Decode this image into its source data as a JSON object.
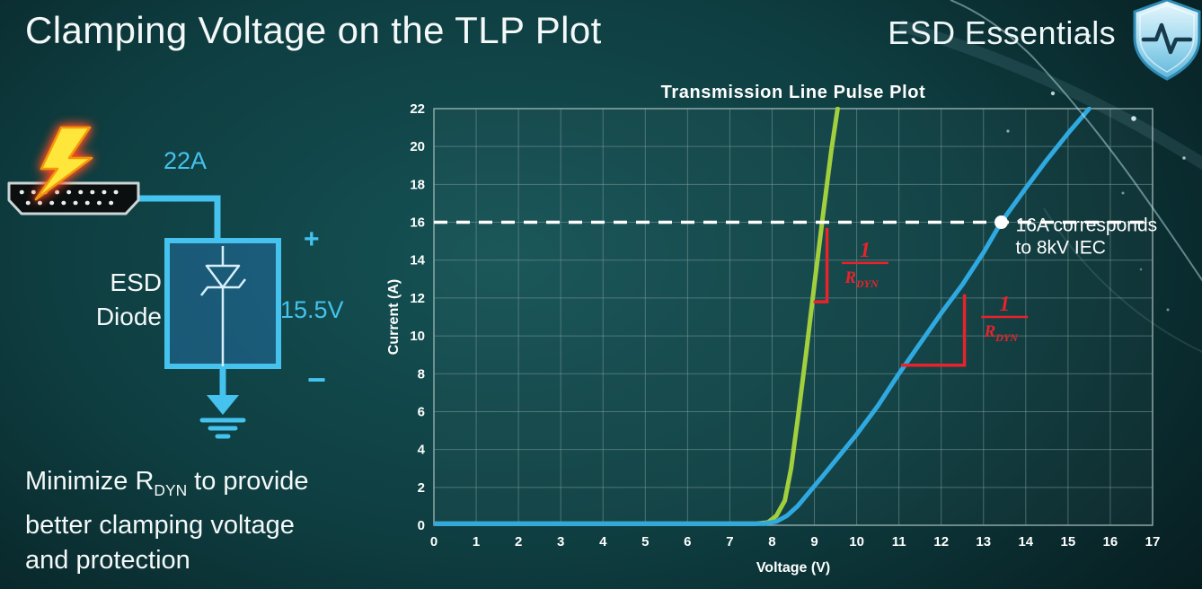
{
  "header": {
    "title": "Clamping Voltage on the TLP Plot",
    "brand": "ESD Essentials"
  },
  "icons": {
    "brand": "shield-pulse-icon",
    "strike": "lightning-bolt-icon",
    "connector": "hdmi-connector-icon",
    "ground": "ground-icon"
  },
  "colors": {
    "accent_cyan": "#45c2ed",
    "series_green": "#a2cf3e",
    "series_blue": "#2fa9e0",
    "annotation_red": "#e8232a",
    "background_teal": "#0d3b3e",
    "text": "#f2f6f6"
  },
  "diagram": {
    "surge_current": "22A",
    "plus": "+",
    "clamp_voltage": "15.5V",
    "minus": "−",
    "component_line1": "ESD",
    "component_line2": "Diode"
  },
  "caption": {
    "line1_pre": "Minimize R",
    "line1_sub": "DYN",
    "line1_post": " to provide",
    "line2": "better clamping voltage",
    "line3": "and protection"
  },
  "chart_data": {
    "type": "line",
    "title": "Transmission Line Pulse Plot",
    "xlabel": "Voltage (V)",
    "ylabel": "Current (A)",
    "xlim": [
      0,
      17
    ],
    "ylim": [
      0,
      22
    ],
    "xticks": [
      0,
      1,
      2,
      3,
      4,
      5,
      6,
      7,
      8,
      9,
      10,
      11,
      12,
      13,
      14,
      15,
      16,
      17
    ],
    "yticks": [
      0,
      2,
      4,
      6,
      8,
      10,
      12,
      14,
      16,
      18,
      20,
      22
    ],
    "grid": true,
    "series": [
      {
        "id": "low-rdyn-diode",
        "color": "#a2cf3e",
        "points": [
          [
            0,
            0.08
          ],
          [
            7.6,
            0.08
          ],
          [
            7.9,
            0.15
          ],
          [
            8.1,
            0.5
          ],
          [
            8.3,
            1.3
          ],
          [
            8.45,
            3.0
          ],
          [
            8.6,
            5.5
          ],
          [
            8.8,
            9.0
          ],
          [
            9.0,
            12.7
          ],
          [
            9.2,
            16.3
          ],
          [
            9.4,
            19.8
          ],
          [
            9.55,
            22
          ]
        ]
      },
      {
        "id": "high-rdyn-diode",
        "color": "#2fa9e0",
        "points": [
          [
            0,
            0.08
          ],
          [
            7.8,
            0.08
          ],
          [
            8.1,
            0.2
          ],
          [
            8.35,
            0.5
          ],
          [
            8.6,
            1.0
          ],
          [
            8.9,
            1.8
          ],
          [
            9.2,
            2.6
          ],
          [
            9.6,
            3.7
          ],
          [
            10,
            4.8
          ],
          [
            10.5,
            6.3
          ],
          [
            11,
            8.0
          ],
          [
            11.5,
            9.6
          ],
          [
            12,
            11.2
          ],
          [
            12.5,
            12.7
          ],
          [
            13,
            14.4
          ],
          [
            13.42,
            16
          ],
          [
            14,
            17.8
          ],
          [
            14.5,
            19.3
          ],
          [
            15,
            20.7
          ],
          [
            15.5,
            22
          ]
        ]
      }
    ],
    "reference_line": {
      "y": 16,
      "style": "dashed",
      "color": "#ffffff"
    },
    "marker": {
      "x": 13.42,
      "y": 16,
      "label_line1": "16A corresponds",
      "label_line2": "to 8kV IEC"
    },
    "annotations": [
      {
        "id": "rdyn-green",
        "numerator": "1",
        "denominator": "R",
        "denominator_sub": "DYN",
        "color": "#e8232a",
        "bracket": [
          [
            8.98,
            11.8
          ],
          [
            9.3,
            11.8
          ],
          [
            9.3,
            15.7
          ]
        ],
        "label_x": 10.2,
        "label_y": 13.85
      },
      {
        "id": "rdyn-blue",
        "numerator": "1",
        "denominator": "R",
        "denominator_sub": "DYN",
        "color": "#e8232a",
        "bracket": [
          [
            11.05,
            8.45
          ],
          [
            12.55,
            8.45
          ],
          [
            12.55,
            12.2
          ]
        ],
        "label_x": 13.5,
        "label_y": 11.0
      }
    ]
  }
}
